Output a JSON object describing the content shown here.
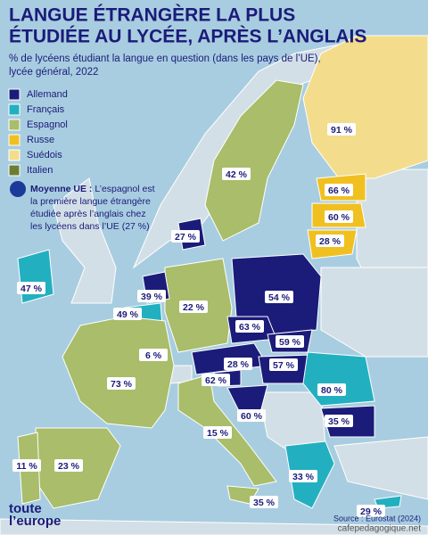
{
  "title": [
    "LANGUE ÉTRANGÈRE LA PLUS",
    "ÉTUDIÉE AU LYCÉE, APRÈS L’ANGLAIS"
  ],
  "subtitle": [
    "% de lycéens étudiant la langue en question (dans les pays de l’UE),",
    "lycée général, 2022"
  ],
  "legend": [
    {
      "label": "Allemand",
      "color": "#1b1b7a"
    },
    {
      "label": "Français",
      "color": "#22b0c0"
    },
    {
      "label": "Espagnol",
      "color": "#a9bd6a"
    },
    {
      "label": "Russe",
      "color": "#f0c020"
    },
    {
      "label": "Suédois",
      "color": "#f3dc8c"
    },
    {
      "label": "Italien",
      "color": "#6d7d34"
    }
  ],
  "note": {
    "bold": "Moyenne UE :",
    "lines": [
      "L’espagnol est",
      "la première langue étrangère",
      "étudiée après l’anglais chez",
      "les lycéens dans l’UE (27 %)"
    ]
  },
  "labels": [
    "91 %",
    "42 %",
    "66 %",
    "60 %",
    "28 %",
    "27 %",
    "47 %",
    "39 %",
    "22 %",
    "54 %",
    "49 %",
    "63 %",
    "59 %",
    "6 %",
    "28 %",
    "57 %",
    "73 %",
    "62 %",
    "80 %",
    "60 %",
    "15 %",
    "35 %",
    "11 %",
    "23 %",
    "33 %",
    "35 %",
    "29 %"
  ],
  "logo": [
    "toute",
    "l’europe"
  ],
  "source": "Source : Eurostat (2024)",
  "watermark": "cafepedagogique.net"
}
